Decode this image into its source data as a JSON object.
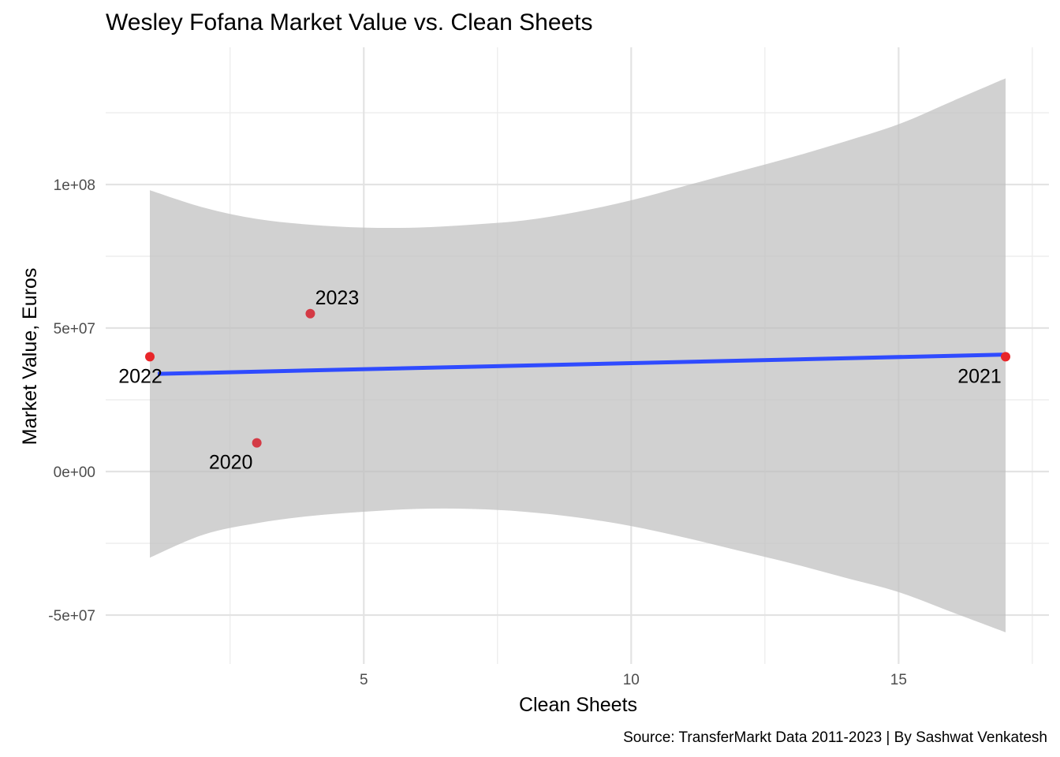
{
  "chart_data": {
    "type": "scatter",
    "title": "Wesley Fofana Market Value vs. Clean Sheets",
    "xlabel": "Clean Sheets",
    "ylabel": "Market Value, Euros",
    "caption": "Source: TransferMarkt Data 2011-2023 | By Sashwat Venkatesh",
    "xlim": [
      0.0,
      17.5
    ],
    "ylim": [
      -66000000,
      147000000
    ],
    "x_ticks": [
      {
        "value": 5,
        "label": "5"
      },
      {
        "value": 10,
        "label": "10"
      },
      {
        "value": 15,
        "label": "15"
      }
    ],
    "x_minor": [
      2.5,
      7.5,
      12.5,
      17.5
    ],
    "y_ticks": [
      {
        "value": -50000000,
        "label": "-5e+07"
      },
      {
        "value": 0,
        "label": "0e+00"
      },
      {
        "value": 50000000,
        "label": "5e+07"
      },
      {
        "value": 100000000,
        "label": "1e+08"
      }
    ],
    "y_minor": [
      -25000000,
      25000000,
      75000000,
      125000000
    ],
    "grid": true,
    "points": [
      {
        "x": 3,
        "y": 10000000,
        "label": "2020",
        "color": "#d43a45"
      },
      {
        "x": 17,
        "y": 40000000,
        "label": "2021",
        "color": "#e8262a"
      },
      {
        "x": 1,
        "y": 40000000,
        "label": "2022",
        "color": "#e8262a"
      },
      {
        "x": 4,
        "y": 55000000,
        "label": "2023",
        "color": "#d43a45"
      }
    ],
    "smooth": {
      "method": "linear",
      "x_range": [
        1,
        17
      ],
      "intercept": 33600000,
      "slope": 420000,
      "band_curve": [
        {
          "x": 1,
          "lower": -30000000,
          "upper": 98000000
        },
        {
          "x": 2,
          "lower": -22000000,
          "upper": 92000000
        },
        {
          "x": 3,
          "lower": -18000000,
          "upper": 88000000
        },
        {
          "x": 4,
          "lower": -15500000,
          "upper": 86000000
        },
        {
          "x": 5,
          "lower": -14000000,
          "upper": 85000000
        },
        {
          "x": 6,
          "lower": -13000000,
          "upper": 85000000
        },
        {
          "x": 7,
          "lower": -13000000,
          "upper": 86000000
        },
        {
          "x": 8,
          "lower": -14000000,
          "upper": 87500000
        },
        {
          "x": 9,
          "lower": -16000000,
          "upper": 90500000
        },
        {
          "x": 10,
          "lower": -19000000,
          "upper": 94500000
        },
        {
          "x": 11,
          "lower": -23000000,
          "upper": 99500000
        },
        {
          "x": 12,
          "lower": -27500000,
          "upper": 104500000
        },
        {
          "x": 13,
          "lower": -32000000,
          "upper": 109500000
        },
        {
          "x": 14,
          "lower": -37000000,
          "upper": 115000000
        },
        {
          "x": 15,
          "lower": -42000000,
          "upper": 121000000
        },
        {
          "x": 16,
          "lower": -49000000,
          "upper": 129000000
        },
        {
          "x": 17,
          "lower": -56000000,
          "upper": 137000000
        }
      ],
      "line_color": "#2f4bff",
      "band_color": "#bfbfbf"
    }
  }
}
